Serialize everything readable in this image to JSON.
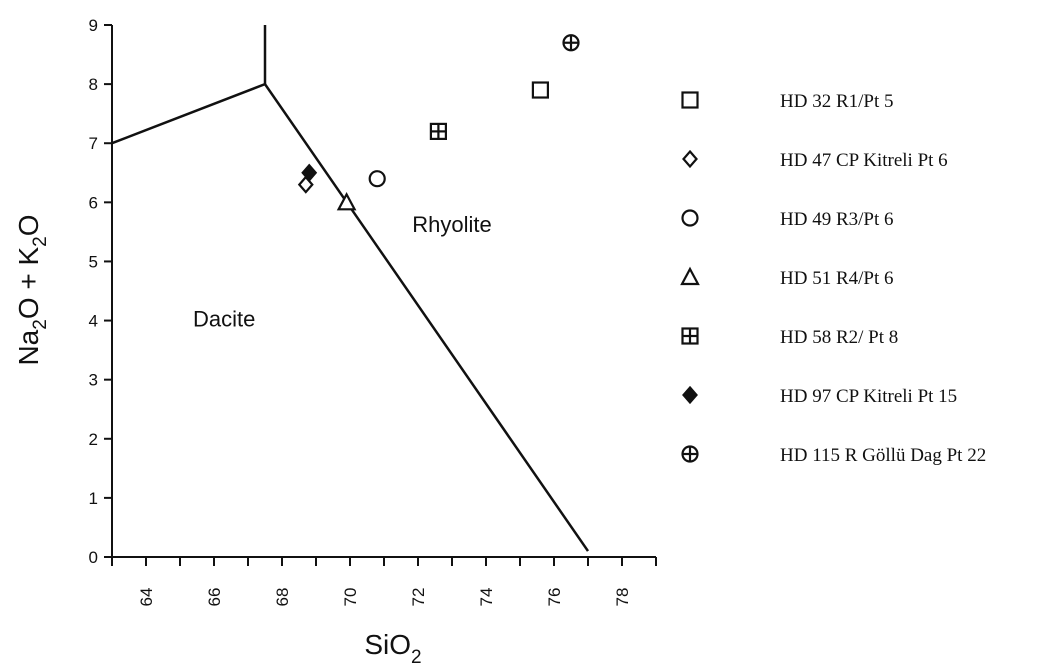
{
  "chart_data": {
    "type": "scatter",
    "title": "",
    "xlabel": {
      "main": "SiO",
      "sub": "2"
    },
    "ylabel": [
      {
        "text": "Na",
        "sub": false
      },
      {
        "text": "2",
        "sub": true
      },
      {
        "text": "O + K",
        "sub": false
      },
      {
        "text": "2",
        "sub": true
      },
      {
        "text": "O",
        "sub": false
      }
    ],
    "xlim": [
      63,
      79
    ],
    "ylim": [
      0,
      9
    ],
    "xticks": [
      64,
      66,
      68,
      70,
      72,
      74,
      76,
      78
    ],
    "yticks": [
      0,
      1,
      2,
      3,
      4,
      5,
      6,
      7,
      8,
      9
    ],
    "grid": false,
    "legend_position": "right",
    "field_labels": [
      {
        "text": "Dacite",
        "x": 66.3,
        "y": 3.9
      },
      {
        "text": "Rhyolite",
        "x": 73.0,
        "y": 5.5
      }
    ],
    "boundary_lines": [
      [
        [
          63,
          7.0
        ],
        [
          67.5,
          8.0
        ],
        [
          77.0,
          0.1
        ]
      ],
      [
        [
          67.5,
          8.0
        ],
        [
          67.5,
          9.0
        ]
      ]
    ],
    "series": [
      {
        "name": "HD 32 R1/Pt 5",
        "marker": "square",
        "points": [
          [
            75.6,
            7.9
          ]
        ]
      },
      {
        "name": "HD 47 CP Kitreli Pt 6",
        "marker": "diamond-open",
        "points": [
          [
            68.7,
            6.3
          ]
        ]
      },
      {
        "name": "HD 49 R3/Pt 6",
        "marker": "circle",
        "points": [
          [
            70.8,
            6.4
          ]
        ]
      },
      {
        "name": "HD 51 R4/Pt 6",
        "marker": "triangle",
        "points": [
          [
            69.9,
            6.0
          ]
        ]
      },
      {
        "name": "HD 58 R2/ Pt 8",
        "marker": "square-plus",
        "points": [
          [
            72.6,
            7.2
          ]
        ]
      },
      {
        "name": "HD 97 CP Kitreli Pt 15",
        "marker": "diamond-filled",
        "points": [
          [
            68.8,
            6.5
          ]
        ]
      },
      {
        "name": "HD 115 R Göllü Dag Pt 22",
        "marker": "circle-plus",
        "points": [
          [
            76.5,
            8.7
          ]
        ]
      }
    ]
  }
}
